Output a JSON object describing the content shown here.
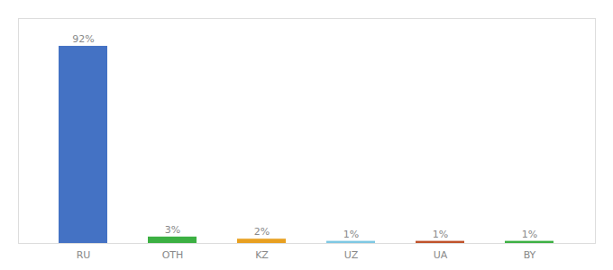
{
  "chart_data": {
    "type": "bar",
    "categories": [
      "RU",
      "OTH",
      "KZ",
      "UZ",
      "UA",
      "BY"
    ],
    "values": [
      92,
      3,
      2,
      1,
      1,
      1
    ],
    "value_labels": [
      "92%",
      "3%",
      "2%",
      "1%",
      "1%",
      "1%"
    ],
    "colors": [
      "#4472c4",
      "#3cb043",
      "#e8a020",
      "#7ec8e3",
      "#c0522a",
      "#3cb043"
    ],
    "ylim": [
      0,
      105
    ],
    "data_labels": true,
    "tick_labels": "x",
    "grid": false
  }
}
